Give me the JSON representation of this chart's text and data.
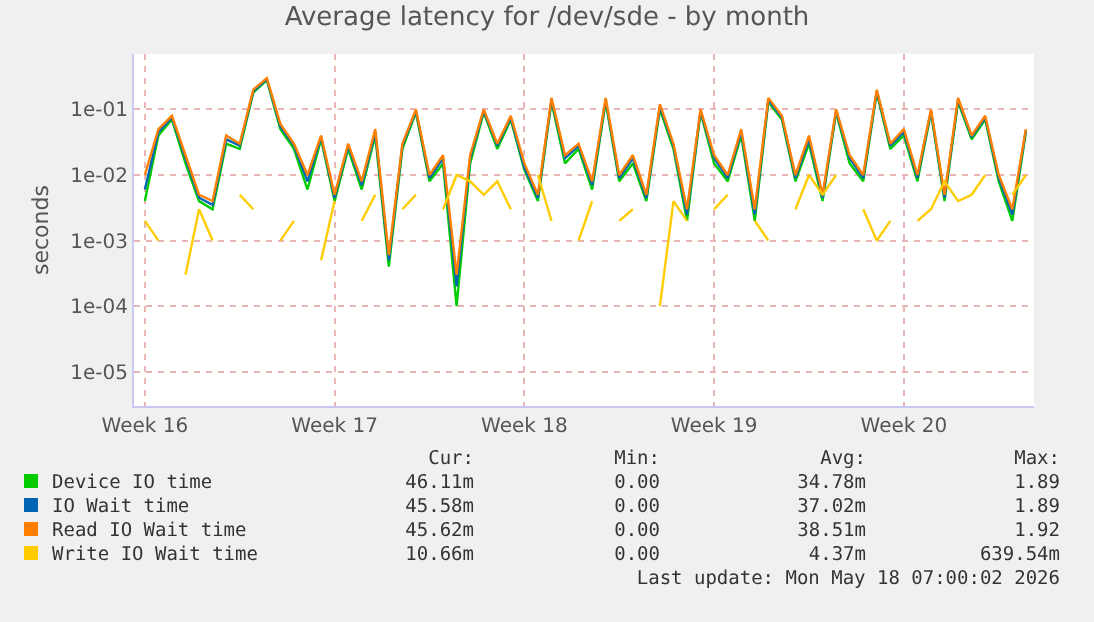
{
  "chart_data": {
    "type": "line",
    "title": "Average latency for /dev/sde - by month",
    "ylabel": "seconds",
    "categories": [
      "Week 16",
      null,
      null,
      null,
      null,
      null,
      null,
      null,
      null,
      null,
      null,
      null,
      null,
      null,
      "Week 17",
      null,
      null,
      null,
      null,
      null,
      null,
      null,
      null,
      null,
      null,
      null,
      null,
      null,
      "Week 18",
      null,
      null,
      null,
      null,
      null,
      null,
      null,
      null,
      null,
      null,
      null,
      null,
      null,
      "Week 19",
      null,
      null,
      null,
      null,
      null,
      null,
      null,
      null,
      null,
      null,
      null,
      null,
      null,
      "Week 20",
      null,
      null,
      null,
      null,
      null,
      null,
      null,
      null,
      null
    ],
    "series": [
      {
        "name": "Device IO time",
        "color": "#00cc00",
        "values": [
          0.004,
          0.04,
          0.07,
          0.015,
          0.004,
          0.003,
          0.03,
          0.025,
          0.18,
          0.28,
          0.05,
          0.025,
          0.006,
          0.035,
          0.004,
          0.025,
          0.006,
          0.04,
          0.0004,
          0.025,
          0.09,
          0.008,
          0.015,
          0.0001,
          0.015,
          0.09,
          0.025,
          0.07,
          0.012,
          0.004,
          0.13,
          0.015,
          0.025,
          0.006,
          0.13,
          0.008,
          0.015,
          0.004,
          0.1,
          0.025,
          0.002,
          0.09,
          0.015,
          0.008,
          0.04,
          0.002,
          0.13,
          0.07,
          0.008,
          0.03,
          0.004,
          0.09,
          0.015,
          0.008,
          0.18,
          0.025,
          0.04,
          0.008,
          0.09,
          0.004,
          0.13,
          0.035,
          0.07,
          0.008,
          0.002,
          0.045
        ]
      },
      {
        "name": "IO Wait time",
        "color": "#0066b3",
        "values": [
          0.006,
          0.045,
          0.075,
          0.018,
          0.0045,
          0.0035,
          0.035,
          0.028,
          0.19,
          0.29,
          0.055,
          0.028,
          0.008,
          0.038,
          0.0045,
          0.028,
          0.007,
          0.045,
          0.0005,
          0.028,
          0.095,
          0.009,
          0.018,
          0.0002,
          0.018,
          0.095,
          0.028,
          0.075,
          0.013,
          0.0045,
          0.14,
          0.018,
          0.028,
          0.007,
          0.14,
          0.009,
          0.018,
          0.0045,
          0.11,
          0.028,
          0.0025,
          0.095,
          0.018,
          0.009,
          0.045,
          0.0025,
          0.14,
          0.075,
          0.009,
          0.035,
          0.0045,
          0.095,
          0.018,
          0.009,
          0.19,
          0.028,
          0.045,
          0.009,
          0.095,
          0.0045,
          0.14,
          0.038,
          0.075,
          0.009,
          0.0025,
          0.048
        ]
      },
      {
        "name": "Read IO Wait time",
        "color": "#ff8000",
        "values": [
          0.01,
          0.05,
          0.08,
          0.02,
          0.005,
          0.004,
          0.04,
          0.03,
          0.2,
          0.3,
          0.06,
          0.03,
          0.01,
          0.04,
          0.005,
          0.03,
          0.008,
          0.05,
          0.0006,
          0.03,
          0.1,
          0.01,
          0.02,
          0.0003,
          0.02,
          0.1,
          0.03,
          0.08,
          0.015,
          0.005,
          0.15,
          0.02,
          0.03,
          0.008,
          0.15,
          0.01,
          0.02,
          0.005,
          0.12,
          0.03,
          0.003,
          0.1,
          0.02,
          0.01,
          0.05,
          0.003,
          0.15,
          0.08,
          0.01,
          0.04,
          0.005,
          0.1,
          0.02,
          0.01,
          0.2,
          0.03,
          0.05,
          0.01,
          0.1,
          0.005,
          0.15,
          0.04,
          0.08,
          0.01,
          0.003,
          0.05
        ]
      },
      {
        "name": "Write IO Wait time",
        "color": "#ffcc00",
        "values": [
          0.002,
          0.001,
          null,
          0.0003,
          0.003,
          0.001,
          null,
          0.005,
          0.003,
          null,
          0.001,
          0.002,
          null,
          0.0005,
          0.004,
          null,
          0.002,
          0.005,
          null,
          0.003,
          0.005,
          null,
          0.003,
          0.01,
          0.008,
          0.005,
          0.008,
          0.003,
          null,
          0.01,
          0.002,
          null,
          0.001,
          0.004,
          null,
          0.002,
          0.003,
          null,
          0.0001,
          0.004,
          0.002,
          null,
          0.003,
          0.005,
          null,
          0.002,
          0.001,
          null,
          0.003,
          0.01,
          0.005,
          0.01,
          null,
          0.003,
          0.001,
          0.002,
          null,
          0.002,
          0.003,
          0.008,
          0.004,
          0.005,
          0.01,
          null,
          0.005,
          0.01
        ]
      }
    ],
    "log": "y",
    "ylim": [
      3e-06,
      0.7
    ],
    "yticks": [
      {
        "value": 1e-05,
        "label": "1e-05"
      },
      {
        "value": 0.0001,
        "label": "1e-04"
      },
      {
        "value": 0.001,
        "label": "1e-03"
      },
      {
        "value": 0.01,
        "label": "1e-02"
      },
      {
        "value": 0.1,
        "label": "1e-01"
      }
    ],
    "grid": true,
    "legend": "bottom",
    "marker": "none",
    "line_style": "solid",
    "annotations": [
      "Cur:",
      "Min:",
      "Avg:",
      "Max:",
      "46.11m",
      "0.00",
      "34.78m",
      "1.89",
      "45.58m",
      "0.00",
      "37.02m",
      "1.89",
      "45.62m",
      "0.00",
      "38.51m",
      "1.92",
      "10.66m",
      "0.00",
      "4.37m",
      "639.54m",
      "Last update: Mon May 18 07:00:02 2026"
    ]
  }
}
